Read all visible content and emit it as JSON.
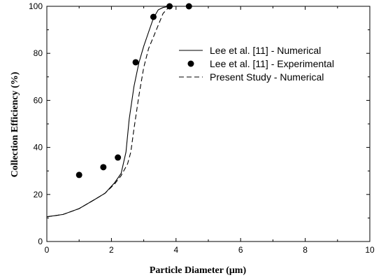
{
  "chart_data": {
    "type": "line",
    "title": "",
    "xlabel": "Particle Diameter (μm)",
    "ylabel": "Collection Efficiency (%)",
    "xlim": [
      0,
      10
    ],
    "ylim": [
      0,
      100
    ],
    "x_ticks": [
      "0",
      "2",
      "4",
      "6",
      "8",
      "10"
    ],
    "y_ticks": [
      "0",
      "20",
      "40",
      "60",
      "80",
      "100"
    ],
    "grid": false,
    "legend_position": "top-right",
    "series": [
      {
        "name": "Lee et al. [11] - Numerical",
        "style": "solid",
        "points": [
          [
            0,
            10.5
          ],
          [
            0.5,
            11.5
          ],
          [
            1.0,
            14
          ],
          [
            1.5,
            18
          ],
          [
            1.8,
            20.5
          ],
          [
            2.1,
            25
          ],
          [
            2.3,
            29
          ],
          [
            2.45,
            38
          ],
          [
            2.55,
            52
          ],
          [
            2.7,
            66
          ],
          [
            2.85,
            76
          ],
          [
            3.0,
            83
          ],
          [
            3.15,
            89
          ],
          [
            3.3,
            95
          ],
          [
            3.45,
            98.5
          ],
          [
            3.6,
            99.5
          ],
          [
            3.8,
            100
          ],
          [
            4.4,
            100
          ]
        ]
      },
      {
        "name": "Lee et al. [11] - Experimental",
        "style": "markers",
        "points": [
          [
            1.0,
            28.3
          ],
          [
            1.75,
            31.6
          ],
          [
            2.2,
            35.7
          ],
          [
            2.75,
            76.2
          ],
          [
            3.3,
            95.5
          ],
          [
            3.8,
            100
          ],
          [
            4.4,
            100
          ]
        ]
      },
      {
        "name": "Present Study - Numerical",
        "style": "dashed",
        "points": [
          [
            0,
            10.5
          ],
          [
            0.5,
            11.5
          ],
          [
            1.0,
            14
          ],
          [
            1.5,
            18
          ],
          [
            1.8,
            20.5
          ],
          [
            2.1,
            24.5
          ],
          [
            2.3,
            28
          ],
          [
            2.5,
            33
          ],
          [
            2.6,
            38
          ],
          [
            2.7,
            48
          ],
          [
            2.85,
            62
          ],
          [
            3.0,
            74
          ],
          [
            3.15,
            82
          ],
          [
            3.3,
            87
          ],
          [
            3.45,
            92
          ],
          [
            3.6,
            97
          ],
          [
            3.75,
            99.2
          ],
          [
            3.9,
            100
          ],
          [
            4.4,
            100
          ]
        ]
      }
    ]
  }
}
